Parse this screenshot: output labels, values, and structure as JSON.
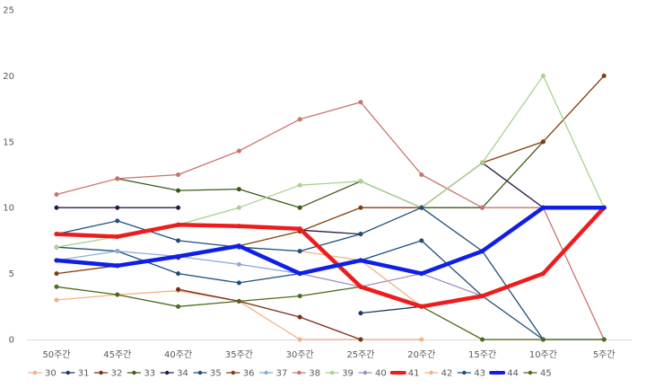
{
  "chart_data": {
    "type": "line",
    "categories": [
      "50주간",
      "45주간",
      "40주간",
      "35주간",
      "30주간",
      "25주간",
      "20주간",
      "15주간",
      "10주간",
      "5주간"
    ],
    "ylim": [
      0,
      25
    ],
    "yticks": [
      "0",
      "5",
      "10",
      "15",
      "20",
      "25"
    ],
    "grid": false,
    "legend_position": "bottom",
    "series": [
      {
        "name": "30",
        "color": "#f4b183",
        "width": 1.3,
        "values": [
          3,
          3.4,
          3.7,
          2.9,
          0,
          0,
          0,
          null,
          null,
          null
        ]
      },
      {
        "name": "31",
        "color": "#1f3864",
        "width": 1.3,
        "values": [
          null,
          null,
          null,
          null,
          null,
          2,
          2.5,
          null,
          null,
          null
        ]
      },
      {
        "name": "32",
        "color": "#7b2c12",
        "width": 1.3,
        "values": [
          null,
          null,
          3.8,
          2.9,
          1.7,
          0,
          null,
          null,
          null,
          null
        ]
      },
      {
        "name": "33",
        "color": "#3a5a13",
        "width": 1.3,
        "values": [
          null,
          12.2,
          11.3,
          11.4,
          10,
          12,
          10,
          10,
          15,
          null
        ]
      },
      {
        "name": "34",
        "color": "#2e1a47",
        "width": 1.3,
        "values": [
          10,
          10,
          10,
          null,
          8.3,
          8,
          null,
          13.4,
          10,
          null
        ]
      },
      {
        "name": "35",
        "color": "#1f4e79",
        "width": 1.3,
        "values": [
          7,
          6.7,
          5,
          4.3,
          5,
          6,
          7.5,
          3.3,
          0,
          0
        ]
      },
      {
        "name": "36",
        "color": "#843c0c",
        "width": 1.3,
        "values": [
          5,
          5.6,
          6.2,
          7.1,
          8.2,
          10,
          10,
          13.4,
          15,
          20
        ]
      },
      {
        "name": "37",
        "color": "#8faadc",
        "width": 1.3,
        "values": [
          6,
          6.7,
          6.3,
          5.7,
          5,
          null,
          null,
          null,
          null,
          null
        ]
      },
      {
        "name": "38",
        "color": "#c9736e",
        "width": 1.3,
        "values": [
          11,
          12.2,
          12.5,
          14.3,
          16.7,
          18,
          12.5,
          10,
          10,
          0
        ]
      },
      {
        "name": "39",
        "color": "#a9d18e",
        "width": 1.3,
        "values": [
          7,
          7.8,
          8.7,
          10,
          11.7,
          12,
          10,
          13.4,
          20,
          10
        ]
      },
      {
        "name": "40",
        "color": "#a48cc4",
        "width": 1.3,
        "values": [
          null,
          null,
          null,
          null,
          5,
          4,
          5,
          3.3,
          null,
          null
        ]
      },
      {
        "name": "41",
        "color": "#ee1c1c",
        "width": 4.5,
        "values": [
          8,
          7.8,
          8.7,
          8.6,
          8.4,
          4,
          2.5,
          3.3,
          5,
          10
        ]
      },
      {
        "name": "42",
        "color": "#f4b183",
        "width": 1.3,
        "values": [
          null,
          null,
          null,
          null,
          6.7,
          6,
          2.5,
          null,
          null,
          null
        ]
      },
      {
        "name": "43",
        "color": "#1f4e79",
        "width": 1.3,
        "values": [
          8,
          9,
          7.5,
          7,
          6.7,
          8,
          10,
          6.7,
          0,
          null
        ]
      },
      {
        "name": "44",
        "color": "#0f1fe6",
        "width": 4.5,
        "values": [
          6,
          5.6,
          6.3,
          7.1,
          5,
          6,
          5,
          6.7,
          10,
          10
        ]
      },
      {
        "name": "45",
        "color": "#4b6b1b",
        "width": 1.3,
        "values": [
          4,
          3.4,
          2.5,
          2.9,
          3.3,
          4,
          2.5,
          0,
          0,
          0
        ]
      }
    ]
  }
}
